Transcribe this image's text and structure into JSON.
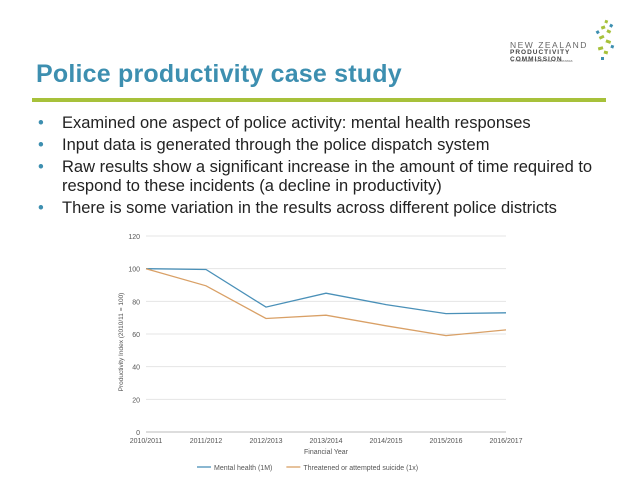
{
  "slide": {
    "title": "Police productivity case study",
    "bullets": [
      "Examined one aspect of police activity: mental health responses",
      "Input data is generated through the police dispatch system",
      "Raw results show a significant increase in the amount of time required to respond to these incidents (a decline in productivity)",
      "There is some variation in the results across different police districts"
    ]
  },
  "logo": {
    "line1": "NEW ZEALAND",
    "line2": "PRODUCTIVITY COMMISSION",
    "line3": "Te Kōmihana Whai Hua o Aotearoa"
  },
  "colors": {
    "title": "#3d8fb0",
    "rule": "#a7c13a",
    "series_mental": "#4a90b8",
    "series_suicide": "#d9a066"
  },
  "chart_data": {
    "type": "line",
    "xlabel": "Financial Year",
    "ylabel": "Productivity Index (2010/11 = 100)",
    "ylim": [
      0,
      120
    ],
    "yticks": [
      0,
      20,
      40,
      60,
      80,
      100,
      120
    ],
    "categories": [
      "2010/2011",
      "2011/2012",
      "2012/2013",
      "2013/2014",
      "2014/2015",
      "2015/2016",
      "2016/2017"
    ],
    "series": [
      {
        "name": "Mental health (1M)",
        "color": "#4a90b8",
        "values": [
          100,
          99.5,
          76.5,
          85,
          78,
          72.5,
          73
        ]
      },
      {
        "name": "Threatened or attempted suicide (1x)",
        "color": "#d9a066",
        "values": [
          100,
          89.5,
          69.5,
          71.5,
          65,
          59,
          62.5
        ]
      }
    ],
    "legend": "bottom"
  }
}
